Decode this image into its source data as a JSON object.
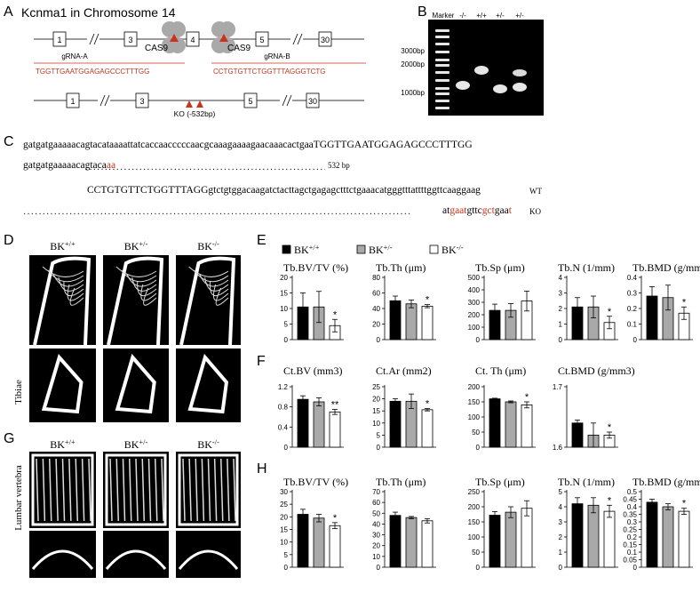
{
  "panels": {
    "A": {
      "letter": "A",
      "title": "Kcnma1 in Chromosome 14",
      "exons_top": [
        "1",
        "3",
        "4",
        "5",
        "30"
      ],
      "exons_bottom": [
        "1",
        "3",
        "5",
        "30"
      ],
      "cas9_label": "CAS9",
      "grna_a_label": "gRNA-A",
      "grna_a_seq": "TGGTTGAATGGAGAGCCCTTTGG",
      "grna_b_label": "gRNA-B",
      "grna_b_seq": "CCTGTGTTCTGGTTTAGGGTCTG",
      "ko_label": "KO (-532bp)"
    },
    "B": {
      "letter": "B",
      "lanes": [
        "Marker",
        "-/-",
        "+/+",
        "+/-",
        "+/-"
      ],
      "ladder": [
        "3000bp",
        "2000bp",
        "1000bp"
      ]
    },
    "C": {
      "letter": "C",
      "wt1": "gatgatgaaaaacagtacataaaattatcaccaacccccaacgcaaagaaaagaacaaacactgaaTGGTTGAATGGAGAGCCCTTTGG",
      "ko1_a": "gatgatgaaaaacagtaca",
      "ko1_red": "aa",
      "gap_label": "532 bp",
      "wt2": "CCTGTGTTCTGGTTTAGGgtctgtggacaagatctacttagctgagagctttctgaaacatgggtttattttggttcaaggaag",
      "wt_label": "WT",
      "ko2": [
        {
          "t": "at",
          "red": false
        },
        {
          "t": "gaat",
          "red": true
        },
        {
          "t": "gttc",
          "red": false
        },
        {
          "t": "gct",
          "red": true
        },
        {
          "t": "gaa",
          "red": false
        },
        {
          "t": "t",
          "red": true
        }
      ],
      "ko_label": "KO"
    },
    "D": {
      "letter": "D",
      "genotypes": [
        "BK+/+",
        "BK+/-",
        "BK-/-"
      ],
      "side_label": "Tibiae"
    },
    "G": {
      "letter": "G",
      "genotypes": [
        "BK+/+",
        "BK+/-",
        "BK-/-"
      ],
      "side_label": "Lumbar vertebra"
    },
    "E": {
      "letter": "E"
    },
    "F": {
      "letter": "F"
    },
    "H": {
      "letter": "H"
    }
  },
  "legend": [
    "BK+/+",
    "BK+/-",
    "BK-/-"
  ],
  "colors": {
    "wt": "#000000",
    "het": "#a9a9a9",
    "ko": "#ffffff",
    "red": "#c8321e"
  },
  "chart_data": [
    {
      "panel": "E",
      "type": "bar",
      "title": "Tb.BV/TV (%)",
      "categories": [
        "BK+/+",
        "BK+/-",
        "BK-/-"
      ],
      "values": [
        10.5,
        10.5,
        4.5
      ],
      "errors": [
        4.5,
        5,
        2
      ],
      "sig": [
        "",
        "",
        "*"
      ],
      "ylim": [
        0,
        20
      ],
      "ticks": [
        "0",
        "5",
        "10",
        "15",
        "20"
      ]
    },
    {
      "panel": "E",
      "type": "bar",
      "title": "Tb.Th (μm)",
      "categories": [
        "BK+/+",
        "BK+/-",
        "BK-/-"
      ],
      "values": [
        50,
        46,
        43
      ],
      "errors": [
        6,
        5,
        2
      ],
      "sig": [
        "",
        "",
        "*"
      ],
      "ylim": [
        0,
        80
      ],
      "ticks": [
        "0",
        "20",
        "40",
        "60",
        "80"
      ]
    },
    {
      "panel": "E",
      "type": "bar",
      "title": "Tb.Sp (μm)",
      "categories": [
        "BK+/+",
        "BK+/-",
        "BK-/-"
      ],
      "values": [
        235,
        235,
        310
      ],
      "errors": [
        50,
        55,
        80
      ],
      "sig": [
        "",
        "",
        ""
      ],
      "ylim": [
        0,
        500
      ],
      "ticks": [
        "0",
        "100",
        "200",
        "300",
        "400",
        "500"
      ]
    },
    {
      "panel": "E",
      "type": "bar",
      "title": "Tb.N (1/mm)",
      "categories": [
        "BK+/+",
        "BK+/-",
        "BK-/-"
      ],
      "values": [
        2.1,
        2.1,
        1.1
      ],
      "errors": [
        0.6,
        0.7,
        0.4
      ],
      "sig": [
        "",
        "",
        "*"
      ],
      "ylim": [
        0,
        4
      ],
      "ticks": [
        "0",
        "1",
        "2",
        "3",
        "4"
      ]
    },
    {
      "panel": "E",
      "type": "bar",
      "title": "Tb.BMD (g/mm3)",
      "categories": [
        "BK+/+",
        "BK+/-",
        "BK-/-"
      ],
      "values": [
        0.28,
        0.27,
        0.17
      ],
      "errors": [
        0.06,
        0.08,
        0.04
      ],
      "sig": [
        "",
        "",
        "*"
      ],
      "ylim": [
        0,
        0.4
      ],
      "ticks": [
        "0",
        "0.1",
        "0.2",
        "0.3",
        "0.4"
      ]
    },
    {
      "panel": "F",
      "type": "bar",
      "title": "Ct.BV (mm3)",
      "categories": [
        "BK+/+",
        "BK+/-",
        "BK-/-"
      ],
      "values": [
        0.95,
        0.9,
        0.7
      ],
      "errors": [
        0.07,
        0.08,
        0.05
      ],
      "sig": [
        "",
        "",
        "**"
      ],
      "ylim": [
        0,
        1.2
      ],
      "ticks": [
        "0",
        "0.4",
        "0.8",
        "1.2"
      ]
    },
    {
      "panel": "F",
      "type": "bar",
      "title": "Ct.Ar (mm2)",
      "categories": [
        "BK+/+",
        "BK+/-",
        "BK-/-"
      ],
      "values": [
        19,
        19,
        15.5
      ],
      "errors": [
        1,
        3,
        0.5
      ],
      "sig": [
        "",
        "",
        "*"
      ],
      "ylim": [
        0,
        25
      ],
      "ticks": [
        "0",
        "5",
        "10",
        "15",
        "20",
        "25"
      ]
    },
    {
      "panel": "F",
      "type": "bar",
      "title": "Ct. Th (μm)",
      "categories": [
        "BK+/+",
        "BK+/-",
        "BK-/-"
      ],
      "values": [
        160,
        150,
        140
      ],
      "errors": [
        2,
        3,
        10
      ],
      "sig": [
        "",
        "",
        "*"
      ],
      "ylim": [
        0,
        200
      ],
      "ticks": [
        "0",
        "50",
        "100",
        "150",
        "200"
      ]
    },
    {
      "panel": "F",
      "type": "bar",
      "title": "Ct.BMD (g/mm3)",
      "categories": [
        "BK+/+",
        "BK+/-",
        "BK-/-"
      ],
      "values": [
        1.64,
        1.62,
        1.62
      ],
      "errors": [
        0.005,
        0.02,
        0.005
      ],
      "sig": [
        "",
        "",
        "*"
      ],
      "ylim": [
        1.6,
        1.7
      ],
      "ticks": [
        "1.6",
        "1.7"
      ]
    },
    {
      "panel": "H",
      "type": "bar",
      "title": "Tb.BV/TV (%)",
      "categories": [
        "BK+/+",
        "BK+/-",
        "BK-/-"
      ],
      "values": [
        21,
        19.5,
        16.5
      ],
      "errors": [
        2,
        1.5,
        1.2
      ],
      "sig": [
        "",
        "",
        "*"
      ],
      "ylim": [
        0,
        30
      ],
      "ticks": [
        "0",
        "5",
        "10",
        "15",
        "20",
        "25",
        "30"
      ]
    },
    {
      "panel": "H",
      "type": "bar",
      "title": "Tb.Th (μm)",
      "categories": [
        "BK+/+",
        "BK+/-",
        "BK-/-"
      ],
      "values": [
        48,
        46,
        43
      ],
      "errors": [
        3,
        1,
        2
      ],
      "sig": [
        "",
        "",
        ""
      ],
      "ylim": [
        0,
        70
      ],
      "ticks": [
        "0",
        "10",
        "20",
        "30",
        "40",
        "50",
        "60",
        "70"
      ]
    },
    {
      "panel": "H",
      "type": "bar",
      "title": "Tb.Sp (μm)",
      "categories": [
        "BK+/+",
        "BK+/-",
        "BK-/-"
      ],
      "values": [
        172,
        182,
        195
      ],
      "errors": [
        12,
        18,
        25
      ],
      "sig": [
        "",
        "",
        ""
      ],
      "ylim": [
        0,
        250
      ],
      "ticks": [
        "0",
        "50",
        "100",
        "150",
        "200",
        "250"
      ]
    },
    {
      "panel": "H",
      "type": "bar",
      "title": "Tb.N (1/mm)",
      "categories": [
        "BK+/+",
        "BK+/-",
        "BK-/-"
      ],
      "values": [
        4.2,
        4.1,
        3.7
      ],
      "errors": [
        0.4,
        0.5,
        0.4
      ],
      "sig": [
        "",
        "",
        "*"
      ],
      "ylim": [
        0,
        5
      ],
      "ticks": [
        "0",
        "1",
        "2",
        "3",
        "4",
        "5"
      ]
    },
    {
      "panel": "H",
      "type": "bar",
      "title": "Tb.BMD (g/mm3)",
      "categories": [
        "BK+/+",
        "BK+/-",
        "BK-/-"
      ],
      "values": [
        0.43,
        0.4,
        0.37
      ],
      "errors": [
        0.02,
        0.02,
        0.02
      ],
      "sig": [
        "",
        "",
        "*"
      ],
      "ylim": [
        0,
        0.5
      ],
      "ticks": [
        "0",
        "0.05",
        "0.1",
        "0.15",
        "0.2",
        "0.25",
        "0.3",
        "0.35",
        "0.4",
        "0.45",
        "0.5"
      ]
    }
  ]
}
